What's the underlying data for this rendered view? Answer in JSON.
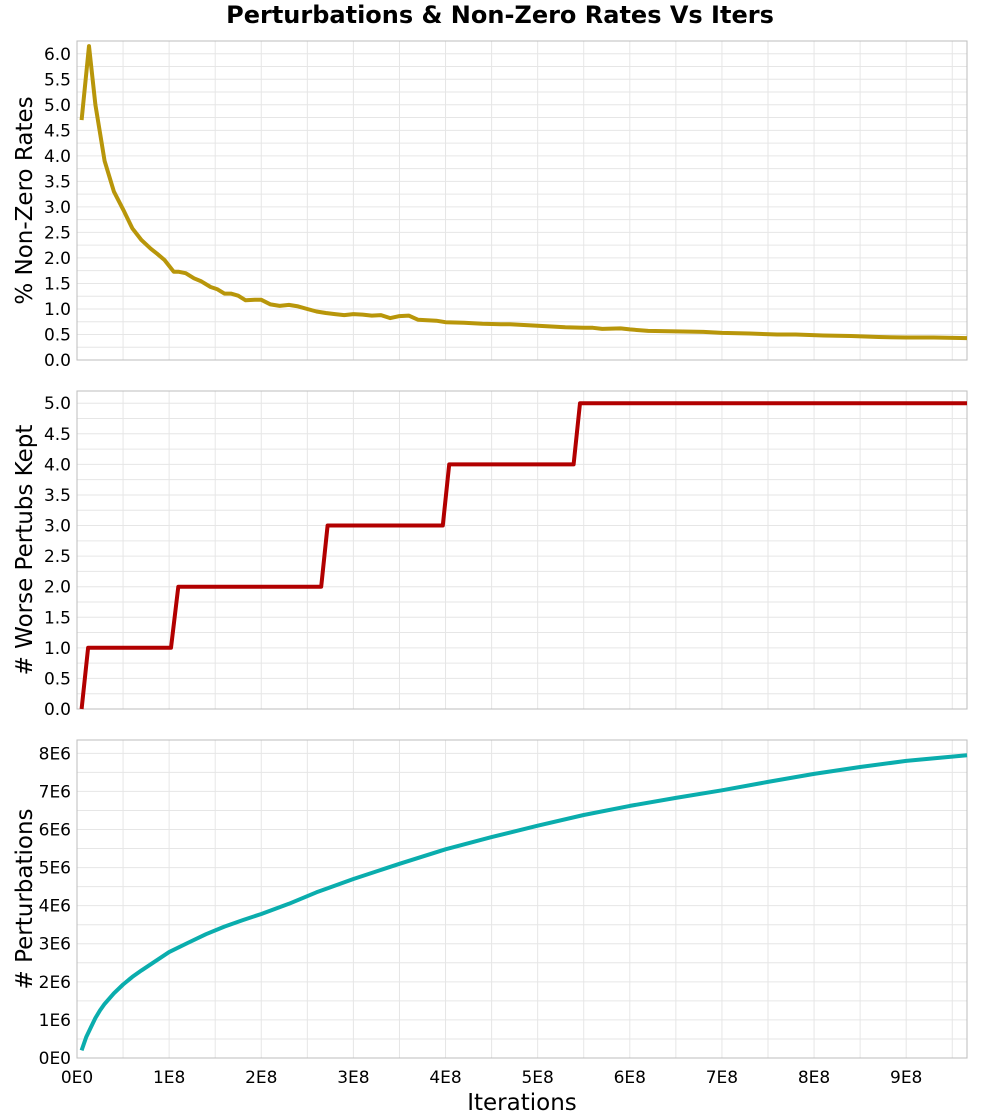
{
  "title": "Perturbations & Non-Zero Rates Vs Iters",
  "xlabel": "Iterations",
  "chart_data": [
    {
      "type": "line",
      "ylabel": "% Non-Zero Rates",
      "ylim": [
        0,
        6.25
      ],
      "xlim": [
        0,
        966000000
      ],
      "yticks": [
        0,
        0.5,
        1,
        1.5,
        2,
        2.5,
        3,
        3.5,
        4,
        4.5,
        5,
        5.5,
        6
      ],
      "ytick_labels": [
        "0.0",
        "0.5",
        "1.0",
        "1.5",
        "2.0",
        "2.5",
        "3.0",
        "3.5",
        "4.0",
        "4.5",
        "5.0",
        "5.5",
        "6.0"
      ],
      "grid": true,
      "color": "#b8960a",
      "x": [
        5000000,
        13000000,
        20000000,
        30000000,
        40000000,
        50000000,
        60000000,
        70000000,
        80000000,
        87000000,
        95000000,
        105000000,
        110000000,
        118000000,
        127000000,
        135000000,
        145000000,
        152000000,
        160000000,
        167000000,
        175000000,
        183000000,
        193000000,
        200000000,
        210000000,
        220000000,
        230000000,
        240000000,
        250000000,
        260000000,
        270000000,
        280000000,
        290000000,
        300000000,
        310000000,
        320000000,
        330000000,
        340000000,
        350000000,
        360000000,
        370000000,
        380000000,
        390000000,
        400000000,
        420000000,
        440000000,
        460000000,
        470000000,
        490000000,
        510000000,
        530000000,
        550000000,
        560000000,
        570000000,
        590000000,
        600000000,
        620000000,
        650000000,
        680000000,
        700000000,
        730000000,
        760000000,
        780000000,
        810000000,
        840000000,
        870000000,
        900000000,
        930000000,
        966000000
      ],
      "y": [
        4.7,
        6.15,
        5.0,
        3.9,
        3.3,
        2.95,
        2.58,
        2.35,
        2.18,
        2.08,
        1.96,
        1.73,
        1.73,
        1.7,
        1.6,
        1.54,
        1.43,
        1.39,
        1.3,
        1.3,
        1.26,
        1.17,
        1.18,
        1.18,
        1.09,
        1.06,
        1.08,
        1.05,
        1.0,
        0.95,
        0.92,
        0.9,
        0.88,
        0.9,
        0.89,
        0.87,
        0.88,
        0.82,
        0.86,
        0.87,
        0.79,
        0.78,
        0.77,
        0.74,
        0.73,
        0.71,
        0.7,
        0.7,
        0.68,
        0.66,
        0.64,
        0.63,
        0.63,
        0.61,
        0.62,
        0.6,
        0.57,
        0.56,
        0.55,
        0.53,
        0.52,
        0.5,
        0.5,
        0.48,
        0.47,
        0.45,
        0.44,
        0.44,
        0.43
      ]
    },
    {
      "type": "line",
      "ylabel": "# Worse Pertubs Kept",
      "ylim": [
        0,
        5.2
      ],
      "xlim": [
        0,
        966000000
      ],
      "yticks": [
        0,
        0.5,
        1,
        1.5,
        2,
        2.5,
        3,
        3.5,
        4,
        4.5,
        5
      ],
      "ytick_labels": [
        "0.0",
        "0.5",
        "1.0",
        "1.5",
        "2.0",
        "2.5",
        "3.0",
        "3.5",
        "4.0",
        "4.5",
        "5.0"
      ],
      "grid": true,
      "color": "#b20000",
      "x": [
        5000000,
        12000000,
        102000000,
        110000000,
        265000000,
        272000000,
        397000000,
        404000000,
        539000000,
        546000000,
        966000000
      ],
      "y": [
        0,
        1,
        1,
        2,
        2,
        3,
        3,
        4,
        4,
        5,
        5
      ]
    },
    {
      "type": "line",
      "ylabel": "# Perturbations",
      "ylim": [
        0,
        8350000
      ],
      "xlim": [
        0,
        966000000
      ],
      "yticks": [
        0,
        1000000,
        2000000,
        3000000,
        4000000,
        5000000,
        6000000,
        7000000,
        8000000
      ],
      "ytick_labels": [
        "0E0",
        "1E6",
        "2E6",
        "3E6",
        "4E6",
        "5E6",
        "6E6",
        "7E6",
        "8E6"
      ],
      "xticks": [
        0,
        100000000,
        200000000,
        300000000,
        400000000,
        500000000,
        600000000,
        700000000,
        800000000,
        900000000
      ],
      "xtick_labels": [
        "0E0",
        "1E8",
        "2E8",
        "3E8",
        "4E8",
        "5E8",
        "6E8",
        "7E8",
        "8E8",
        "9E8"
      ],
      "grid": true,
      "color": "#0aadad",
      "x": [
        5000000,
        10000000,
        15000000,
        20000000,
        25000000,
        30000000,
        40000000,
        50000000,
        60000000,
        70000000,
        80000000,
        90000000,
        100000000,
        120000000,
        140000000,
        160000000,
        180000000,
        200000000,
        230000000,
        260000000,
        300000000,
        350000000,
        400000000,
        450000000,
        500000000,
        550000000,
        600000000,
        650000000,
        700000000,
        750000000,
        800000000,
        850000000,
        900000000,
        966000000
      ],
      "y": [
        200000,
        550000,
        800000,
        1050000,
        1250000,
        1420000,
        1700000,
        1930000,
        2130000,
        2300000,
        2460000,
        2620000,
        2780000,
        3020000,
        3250000,
        3450000,
        3620000,
        3780000,
        4050000,
        4350000,
        4700000,
        5100000,
        5480000,
        5800000,
        6100000,
        6380000,
        6620000,
        6830000,
        7030000,
        7250000,
        7460000,
        7640000,
        7800000,
        7950000
      ]
    }
  ]
}
